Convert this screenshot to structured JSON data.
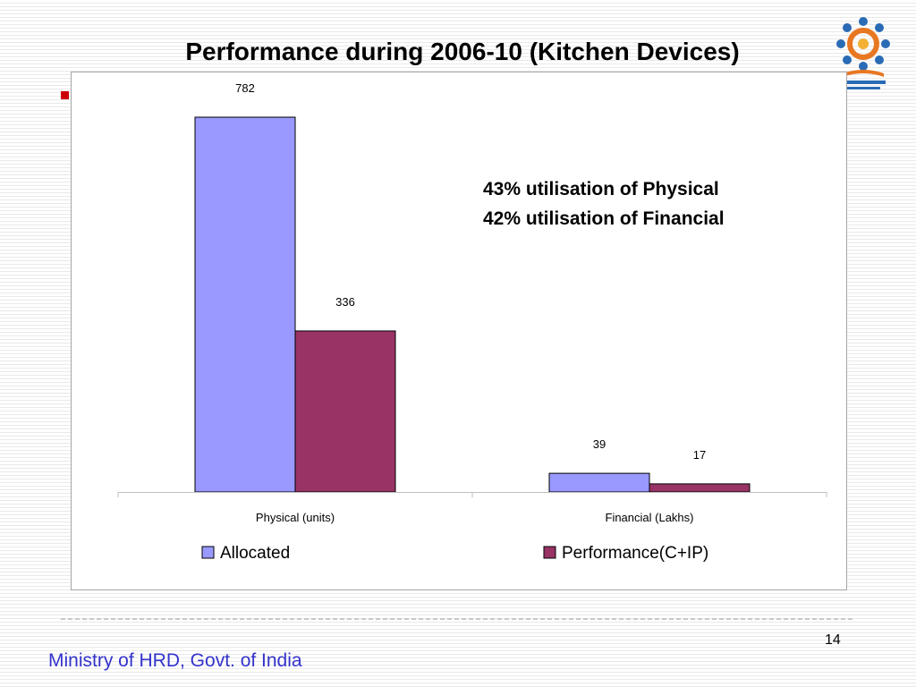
{
  "slide": {
    "title": "Performance during 2006-10 (Kitchen Devices)",
    "footer": "Ministry of HRD, Govt. of India",
    "page_number": "14",
    "annotations": [
      "43% utilisation of Physical",
      "42% utilisation of Financial"
    ],
    "logo_icon": "mid-day-meal-scheme-logo"
  },
  "chart_data": {
    "type": "bar",
    "title": "",
    "xlabel": "",
    "ylabel": "",
    "categories": [
      "Physical (units)",
      "Financial (Lakhs)"
    ],
    "series": [
      {
        "name": "Allocated",
        "values": [
          782,
          39
        ],
        "color": "#9999ff"
      },
      {
        "name": "Performance(C+IP)",
        "values": [
          336,
          17
        ],
        "color": "#993366"
      }
    ],
    "ylim": [
      0,
      782
    ],
    "grid": false,
    "legend": "bottom"
  }
}
